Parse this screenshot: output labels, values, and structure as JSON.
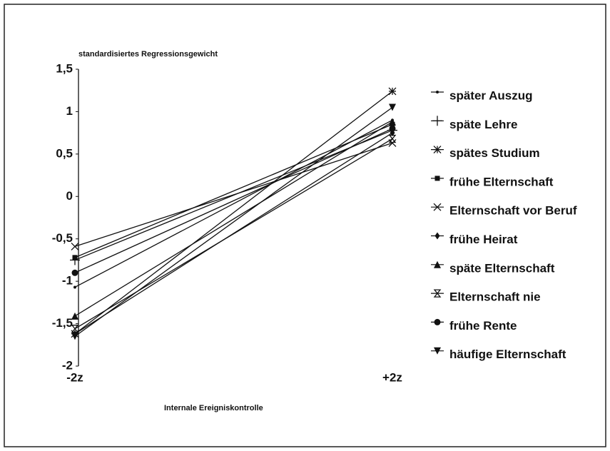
{
  "chart_data": {
    "type": "line",
    "ylabel": "standardisiertes Regressionsgewicht",
    "xlabel": "Internale Ereigniskontrolle",
    "categories": [
      "-2z",
      "+2z"
    ],
    "ylim": [
      -2,
      1.5
    ],
    "yticks": [
      {
        "value": 1.5,
        "label": "1,5"
      },
      1,
      {
        "value": 0.5,
        "label": "0,5"
      },
      0,
      {
        "value": -0.5,
        "label": "-0,5"
      },
      -1,
      {
        "value": -1.5,
        "label": "-1,5"
      },
      -2
    ],
    "legend": "right",
    "series": [
      {
        "name": "später Auszug",
        "color": "#111111",
        "marker": "dot",
        "values": [
          -1.07,
          0.9
        ]
      },
      {
        "name": "späte Lehre",
        "color": "#111111",
        "marker": "plus",
        "values": [
          -0.75,
          0.78
        ]
      },
      {
        "name": "spätes Studium",
        "color": "#111111",
        "marker": "star",
        "values": [
          -1.62,
          1.24
        ]
      },
      {
        "name": "frühe Elternschaft",
        "color": "#111111",
        "marker": "square",
        "values": [
          -0.72,
          0.85
        ]
      },
      {
        "name": "Elternschaft vor Beruf",
        "color": "#111111",
        "marker": "x",
        "values": [
          -0.59,
          0.63
        ]
      },
      {
        "name": "frühe Heirat",
        "color": "#111111",
        "marker": "diamond",
        "values": [
          -1.62,
          0.75
        ]
      },
      {
        "name": "späte Elternschaft",
        "color": "#111111",
        "marker": "triangle",
        "values": [
          -1.41,
          0.88
        ]
      },
      {
        "name": "Elternschaft nie",
        "color": "#111111",
        "marker": "hourglass",
        "values": [
          -1.56,
          0.68
        ]
      },
      {
        "name": "frühe Rente",
        "color": "#111111",
        "marker": "circle",
        "values": [
          -0.9,
          0.8
        ]
      },
      {
        "name": "häufige Elternschaft",
        "color": "#111111",
        "marker": "triangle-down",
        "values": [
          -1.65,
          1.05
        ]
      }
    ]
  }
}
